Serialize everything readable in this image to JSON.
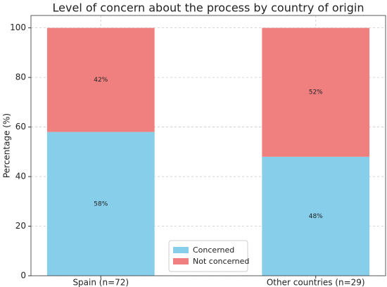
{
  "chart_data": {
    "type": "stacked_bar",
    "title": "Level of concern about the process by country of origin",
    "y_label": "Percentage (%)",
    "categories": [
      "Spain (n=72)",
      "Other countries (n=29)"
    ],
    "series": [
      {
        "name": "Concerned",
        "color": "#87ceeb",
        "values": [
          58,
          48
        ],
        "value_labels": [
          "58%",
          "48%"
        ]
      },
      {
        "name": "Not concerned",
        "color": "#f08080",
        "values": [
          42,
          52
        ],
        "value_labels": [
          "42%",
          "52%"
        ]
      }
    ],
    "ylim": [
      0,
      105
    ],
    "yticks": [
      0,
      20,
      40,
      60,
      80,
      100
    ],
    "grid": true,
    "legend": "lower center"
  }
}
